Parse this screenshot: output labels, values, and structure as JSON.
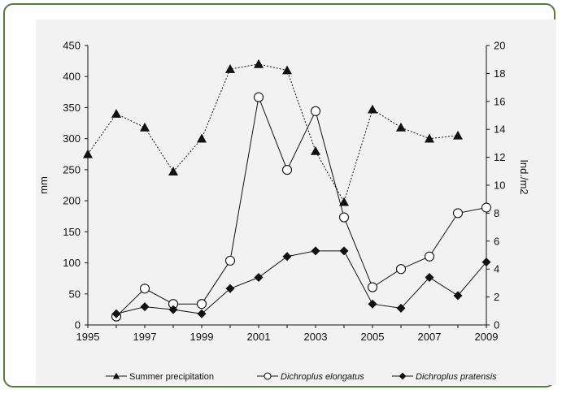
{
  "chart_data": {
    "type": "line",
    "x": [
      1995,
      1996,
      1997,
      1998,
      1999,
      2000,
      2001,
      2002,
      2003,
      2004,
      2005,
      2006,
      2007,
      2008,
      2009
    ],
    "x_ticks": [
      1995,
      1997,
      1999,
      2001,
      2003,
      2005,
      2007,
      2009
    ],
    "y_left": {
      "label": "mm",
      "range": [
        0,
        450
      ],
      "ticks": [
        0,
        50,
        100,
        150,
        200,
        250,
        300,
        350,
        400,
        450
      ]
    },
    "y_right": {
      "label": "Ind./m2",
      "range": [
        0,
        20
      ],
      "ticks": [
        0,
        2,
        4,
        6,
        8,
        10,
        12,
        14,
        16,
        18,
        20
      ]
    },
    "series": [
      {
        "name": "Summer precipitation",
        "axis": "left",
        "marker": "triangle",
        "line": "dotted",
        "x": [
          1995,
          1996,
          1997,
          1998,
          1999,
          2000,
          2001,
          2002,
          2003,
          2004,
          2005,
          2006,
          2007,
          2008
        ],
        "values": [
          275,
          340,
          318,
          247,
          300,
          412,
          420,
          410,
          280,
          198,
          347,
          318,
          300,
          305
        ]
      },
      {
        "name": "Dichroplus elongatus",
        "axis": "right",
        "marker": "circle-open",
        "line": "solid",
        "x": [
          1996,
          1997,
          1998,
          1999,
          2000,
          2001,
          2002,
          2003,
          2004,
          2005,
          2006,
          2007,
          2008,
          2009
        ],
        "values": [
          0.6,
          2.6,
          1.5,
          1.5,
          4.6,
          16.3,
          11.1,
          15.3,
          7.7,
          2.7,
          4.0,
          4.9,
          8.0,
          8.4
        ]
      },
      {
        "name": "Dichroplus pratensis",
        "axis": "right",
        "marker": "diamond",
        "line": "solid",
        "x": [
          1996,
          1997,
          1998,
          1999,
          2000,
          2001,
          2002,
          2003,
          2004,
          2005,
          2006,
          2007,
          2008,
          2009
        ],
        "values": [
          0.8,
          1.3,
          1.1,
          0.8,
          2.6,
          3.4,
          4.9,
          5.3,
          5.3,
          1.5,
          1.2,
          3.4,
          2.1,
          4.5
        ]
      }
    ],
    "legend": {
      "placement": "bottom",
      "entries": [
        "Summer precipitation",
        "Dichroplus elongatus",
        "Dichroplus pratensis"
      ]
    },
    "grid": false
  },
  "colors": {
    "frame": "#4f7f3d",
    "plot_background": "#f2f2f2",
    "ink": "#111111"
  }
}
